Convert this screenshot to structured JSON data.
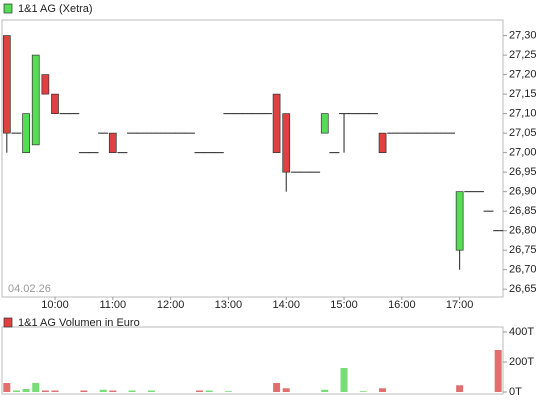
{
  "chart_data": [
    {
      "type": "candlestick",
      "title": "1&1 AG (Xetra)",
      "legend_color": "#55dd55",
      "annotation": "04.02.26",
      "up_color": "#55dd55",
      "down_color": "#e04040",
      "x": [
        "09:10",
        "09:20",
        "09:30",
        "09:40",
        "09:50",
        "10:00",
        "10:10",
        "10:20",
        "10:30",
        "10:40",
        "10:50",
        "11:00",
        "11:10",
        "11:20",
        "11:30",
        "11:40",
        "11:50",
        "12:00",
        "12:10",
        "12:20",
        "12:30",
        "12:40",
        "12:50",
        "13:00",
        "13:10",
        "13:20",
        "13:30",
        "13:40",
        "13:50",
        "14:00",
        "14:10",
        "14:20",
        "14:30",
        "14:40",
        "14:50",
        "15:00",
        "15:10",
        "15:20",
        "15:30",
        "15:40",
        "15:50",
        "16:00",
        "16:10",
        "16:20",
        "16:30",
        "16:40",
        "16:50",
        "17:00",
        "17:10",
        "17:20",
        "17:30",
        "17:40"
      ],
      "open": [
        27.3,
        27.05,
        27.0,
        27.02,
        27.2,
        27.15,
        27.1,
        27.1,
        27.0,
        27.0,
        27.05,
        27.05,
        27.0,
        27.05,
        27.05,
        27.05,
        27.05,
        27.05,
        27.05,
        27.05,
        27.0,
        27.0,
        27.0,
        27.1,
        27.1,
        27.1,
        27.1,
        27.1,
        27.15,
        27.1,
        26.95,
        26.95,
        26.95,
        27.05,
        27.0,
        27.1,
        27.1,
        27.1,
        27.1,
        27.05,
        27.05,
        27.05,
        27.05,
        27.05,
        27.05,
        27.05,
        27.05,
        26.75,
        26.9,
        26.9,
        26.85,
        26.8
      ],
      "high": [
        27.3,
        27.05,
        27.1,
        27.25,
        27.2,
        27.15,
        27.1,
        27.1,
        27.0,
        27.0,
        27.05,
        27.05,
        27.0,
        27.05,
        27.05,
        27.05,
        27.05,
        27.05,
        27.05,
        27.05,
        27.0,
        27.0,
        27.0,
        27.1,
        27.1,
        27.1,
        27.1,
        27.1,
        27.15,
        27.1,
        26.95,
        26.95,
        26.95,
        27.1,
        27.0,
        27.1,
        27.1,
        27.1,
        27.1,
        27.05,
        27.05,
        27.05,
        27.05,
        27.05,
        27.05,
        27.05,
        27.05,
        26.9,
        26.9,
        26.9,
        26.85,
        26.8
      ],
      "low": [
        27.0,
        27.05,
        27.0,
        27.02,
        27.15,
        27.1,
        27.1,
        27.1,
        27.0,
        27.0,
        27.05,
        27.0,
        27.0,
        27.05,
        27.05,
        27.05,
        27.05,
        27.05,
        27.05,
        27.05,
        27.0,
        27.0,
        27.0,
        27.1,
        27.1,
        27.1,
        27.1,
        27.1,
        27.0,
        26.9,
        26.95,
        26.95,
        26.95,
        27.05,
        27.0,
        27.0,
        27.1,
        27.1,
        27.1,
        27.0,
        27.05,
        27.05,
        27.05,
        27.05,
        27.05,
        27.05,
        27.05,
        26.7,
        26.9,
        26.9,
        26.85,
        26.8
      ],
      "close": [
        27.05,
        27.05,
        27.1,
        27.25,
        27.15,
        27.1,
        27.1,
        27.1,
        27.0,
        27.0,
        27.05,
        27.0,
        27.0,
        27.05,
        27.05,
        27.05,
        27.05,
        27.05,
        27.05,
        27.05,
        27.0,
        27.0,
        27.0,
        27.1,
        27.1,
        27.1,
        27.1,
        27.1,
        27.0,
        26.95,
        26.95,
        26.95,
        26.95,
        27.1,
        27.0,
        27.1,
        27.1,
        27.1,
        27.1,
        27.0,
        27.05,
        27.05,
        27.05,
        27.05,
        27.05,
        27.05,
        27.05,
        26.9,
        26.9,
        26.9,
        26.85,
        26.8
      ],
      "xlim": [
        "09:05",
        "17:45"
      ],
      "xticks": [
        "10:00",
        "11:00",
        "12:00",
        "13:00",
        "14:00",
        "15:00",
        "16:00",
        "17:00"
      ],
      "ylim": [
        26.63,
        27.34
      ],
      "yticks": [
        {
          "value": 26.65,
          "label": "26,65"
        },
        {
          "value": 26.7,
          "label": "26,70"
        },
        {
          "value": 26.75,
          "label": "26,75"
        },
        {
          "value": 26.8,
          "label": "26,80"
        },
        {
          "value": 26.85,
          "label": "26,85"
        },
        {
          "value": 26.9,
          "label": "26,90"
        },
        {
          "value": 26.95,
          "label": "26,95"
        },
        {
          "value": 27.0,
          "label": "27,00"
        },
        {
          "value": 27.05,
          "label": "27,05"
        },
        {
          "value": 27.1,
          "label": "27,10"
        },
        {
          "value": 27.15,
          "label": "27,15"
        },
        {
          "value": 27.2,
          "label": "27,20"
        },
        {
          "value": 27.25,
          "label": "27,25"
        },
        {
          "value": 27.3,
          "label": "27,30"
        }
      ]
    },
    {
      "type": "volume",
      "title": "1&1 AG Volumen in Euro",
      "legend_color": "#e04040",
      "up_color": "#77dd77",
      "down_color": "#e07070",
      "x": [
        "09:10",
        "09:20",
        "09:30",
        "09:40",
        "09:50",
        "10:00",
        "10:10",
        "10:20",
        "10:30",
        "10:40",
        "10:50",
        "11:00",
        "11:10",
        "11:20",
        "11:30",
        "11:40",
        "11:50",
        "12:00",
        "12:10",
        "12:20",
        "12:30",
        "12:40",
        "12:50",
        "13:00",
        "13:10",
        "13:20",
        "13:30",
        "13:40",
        "13:50",
        "14:00",
        "14:10",
        "14:20",
        "14:30",
        "14:40",
        "14:50",
        "15:00",
        "15:10",
        "15:20",
        "15:30",
        "15:40",
        "15:50",
        "16:00",
        "16:10",
        "16:20",
        "16:30",
        "16:40",
        "16:50",
        "17:00",
        "17:10",
        "17:20",
        "17:30",
        "17:40"
      ],
      "values": [
        60,
        10,
        20,
        60,
        10,
        10,
        0,
        0,
        10,
        0,
        15,
        10,
        0,
        10,
        0,
        10,
        0,
        0,
        0,
        0,
        10,
        10,
        0,
        5,
        0,
        0,
        0,
        0,
        60,
        25,
        0,
        0,
        0,
        15,
        0,
        160,
        0,
        5,
        0,
        25,
        0,
        0,
        0,
        0,
        0,
        0,
        0,
        45,
        0,
        0,
        0,
        280
      ],
      "xlim": [
        "09:05",
        "17:45"
      ],
      "ylim": [
        0,
        420
      ],
      "yticks": [
        {
          "value": 0,
          "label": "0T"
        },
        {
          "value": 200,
          "label": "200T"
        },
        {
          "value": 400,
          "label": "400T"
        }
      ]
    }
  ]
}
